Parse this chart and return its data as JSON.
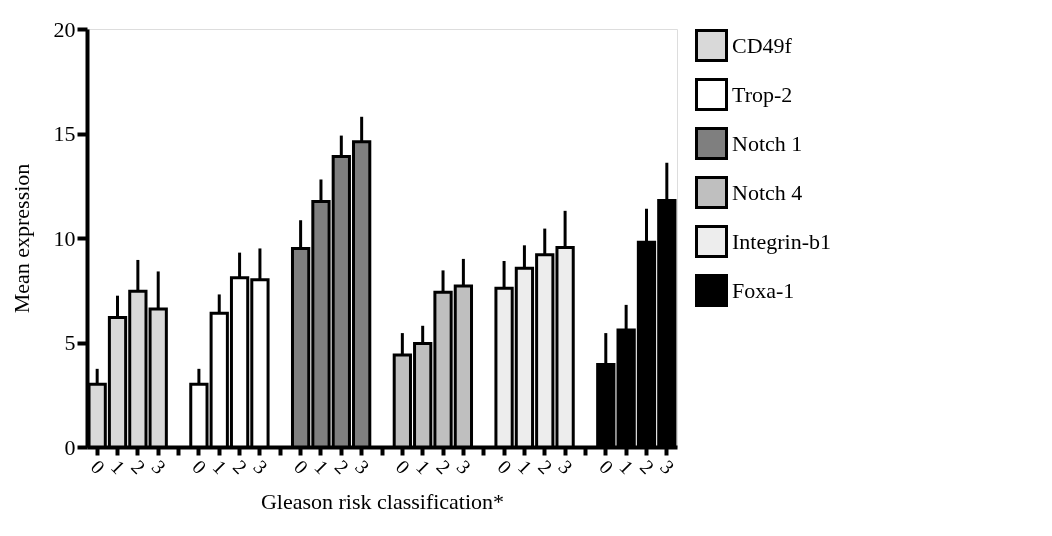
{
  "chart_data": {
    "type": "bar",
    "xlabel": "Gleason risk classification*",
    "ylabel": "Mean expression",
    "categories": [
      "0",
      "1",
      "2",
      "3",
      null,
      "0",
      "1",
      "2",
      "3",
      null,
      "0",
      "1",
      "2",
      "3",
      null,
      "0",
      "1",
      "2",
      "3",
      null,
      "0",
      "1",
      "2",
      "3",
      null,
      "0",
      "1",
      "2",
      "3"
    ],
    "ylim": [
      0,
      20
    ],
    "yticks": [
      0,
      5,
      10,
      15,
      20
    ],
    "grid": false,
    "legend": "right",
    "series": [
      {
        "name": "CD49f",
        "color": "#d9d9d9",
        "values": [
          3.0,
          6.2,
          7.45,
          6.6,
          null,
          null,
          null,
          null,
          null,
          null,
          null,
          null,
          null,
          null,
          null,
          null,
          null,
          null,
          null,
          null,
          null,
          null,
          null,
          null,
          null,
          null,
          null,
          null,
          null
        ],
        "errors": [
          [
            3.0,
            3.74
          ],
          [
            6.2,
            7.24
          ],
          [
            7.45,
            8.95
          ],
          [
            6.6,
            8.4
          ],
          null,
          null,
          null,
          null,
          null,
          null,
          null,
          null,
          null,
          null,
          null,
          null,
          null,
          null,
          null,
          null,
          null,
          null,
          null,
          null,
          null,
          null,
          null,
          null,
          null
        ]
      },
      {
        "name": "Trop-2",
        "color": "#ffffff",
        "values": [
          null,
          null,
          null,
          null,
          null,
          3.0,
          6.4,
          8.1,
          8.0,
          null,
          null,
          null,
          null,
          null,
          null,
          null,
          null,
          null,
          null,
          null,
          null,
          null,
          null,
          null,
          null,
          null,
          null,
          null,
          null
        ],
        "errors": [
          null,
          null,
          null,
          null,
          null,
          [
            3.0,
            3.74
          ],
          [
            6.4,
            7.3
          ],
          [
            8.1,
            9.3
          ],
          [
            8.0,
            9.5
          ],
          null,
          null,
          null,
          null,
          null,
          null,
          null,
          null,
          null,
          null,
          null,
          null,
          null,
          null,
          null,
          null,
          null,
          null,
          null,
          null
        ]
      },
      {
        "name": "Notch 1",
        "color": "#7f7f7f",
        "values": [
          null,
          null,
          null,
          null,
          null,
          null,
          null,
          null,
          null,
          null,
          9.5,
          11.75,
          13.9,
          14.6,
          null,
          null,
          null,
          null,
          null,
          null,
          null,
          null,
          null,
          null,
          null,
          null,
          null,
          null,
          null
        ],
        "errors": [
          null,
          null,
          null,
          null,
          null,
          null,
          null,
          null,
          null,
          null,
          [
            9.5,
            10.85
          ],
          [
            11.75,
            12.8
          ],
          [
            13.9,
            14.9
          ],
          [
            14.6,
            15.8
          ],
          null,
          null,
          null,
          null,
          null,
          null,
          null,
          null,
          null,
          null,
          null,
          null,
          null,
          null,
          null
        ]
      },
      {
        "name": "Notch 4",
        "color": "#bfbfbf",
        "values": [
          null,
          null,
          null,
          null,
          null,
          null,
          null,
          null,
          null,
          null,
          null,
          null,
          null,
          null,
          null,
          4.4,
          4.95,
          7.4,
          7.7,
          null,
          null,
          null,
          null,
          null,
          null,
          null,
          null,
          null,
          null
        ],
        "errors": [
          null,
          null,
          null,
          null,
          null,
          null,
          null,
          null,
          null,
          null,
          null,
          null,
          null,
          null,
          null,
          [
            4.4,
            5.45
          ],
          [
            4.95,
            5.8
          ],
          [
            7.4,
            8.45
          ],
          [
            7.7,
            9.0
          ],
          null,
          null,
          null,
          null,
          null,
          null,
          null,
          null,
          null,
          null
        ]
      },
      {
        "name": "Integrin-b1",
        "color": "#ededed",
        "values": [
          null,
          null,
          null,
          null,
          null,
          null,
          null,
          null,
          null,
          null,
          null,
          null,
          null,
          null,
          null,
          null,
          null,
          null,
          null,
          null,
          7.6,
          8.55,
          9.2,
          9.55,
          null,
          null,
          null,
          null,
          null
        ],
        "errors": [
          null,
          null,
          null,
          null,
          null,
          null,
          null,
          null,
          null,
          null,
          null,
          null,
          null,
          null,
          null,
          null,
          null,
          null,
          null,
          null,
          [
            7.6,
            8.9
          ],
          [
            8.55,
            9.65
          ],
          [
            9.2,
            10.45
          ],
          [
            9.55,
            11.3
          ],
          null,
          null,
          null,
          null,
          null
        ]
      },
      {
        "name": "Foxa-1",
        "color": "#000000",
        "values": [
          null,
          null,
          null,
          null,
          null,
          null,
          null,
          null,
          null,
          null,
          null,
          null,
          null,
          null,
          null,
          null,
          null,
          null,
          null,
          null,
          null,
          null,
          null,
          null,
          null,
          3.95,
          5.6,
          9.8,
          11.8
        ],
        "errors": [
          null,
          null,
          null,
          null,
          null,
          null,
          null,
          null,
          null,
          null,
          null,
          null,
          null,
          null,
          null,
          null,
          null,
          null,
          null,
          null,
          null,
          null,
          null,
          null,
          null,
          [
            3.95,
            5.45
          ],
          [
            5.6,
            6.8
          ],
          [
            9.8,
            11.4
          ],
          [
            11.8,
            13.6
          ]
        ]
      }
    ]
  }
}
